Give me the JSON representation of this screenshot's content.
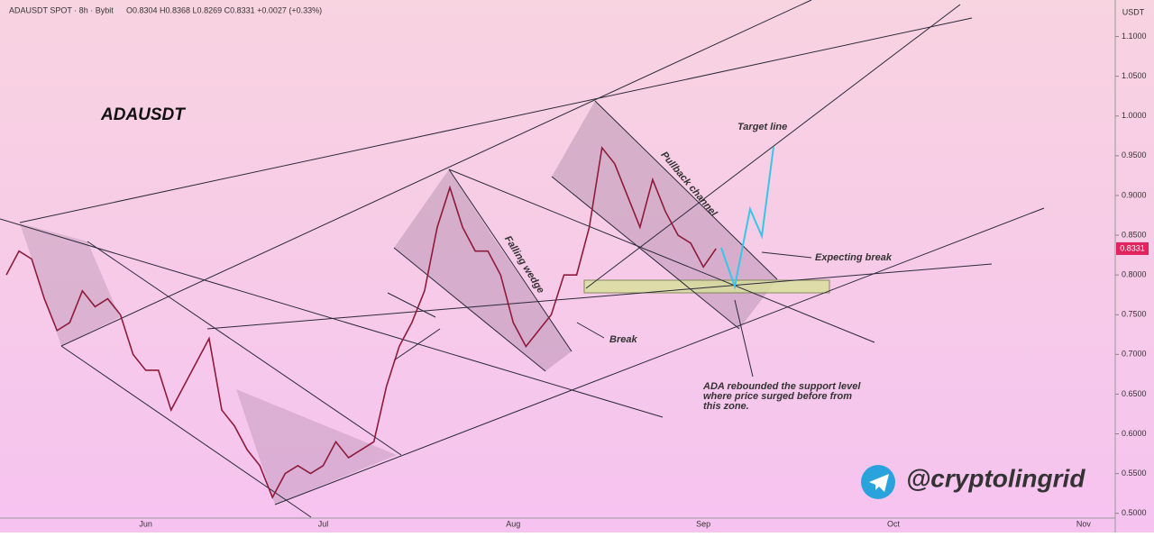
{
  "chart_data": {
    "type": "line",
    "symbol": "ADAUSDT SPOT · 8h · Bybit",
    "ohlc": "O0.8304 H0.8368 L0.8269 C0.8331 +0.0027 (+0.33%)",
    "currency": "USDT",
    "title": "ADAUSDT",
    "last_price": 0.8331,
    "last_price_label": "0.8331",
    "annotations": [
      "Target line",
      "Pullback channel",
      "Falling wedge",
      "Break",
      "Expecting break",
      "ADA rebounded the support level",
      "where price surged before from",
      "this zone."
    ],
    "watermark": "@cryptolingrid",
    "color": "#8e1b3a",
    "categories": [
      null,
      null,
      null,
      null,
      null,
      null,
      null,
      null,
      null,
      null,
      null,
      "Jun",
      null,
      null,
      null,
      null,
      null,
      null,
      null,
      null,
      null,
      null,
      null,
      null,
      null,
      "Jul",
      null,
      null,
      null,
      null,
      null,
      null,
      null,
      null,
      null,
      null,
      null,
      null,
      null,
      null,
      "Aug",
      null,
      null,
      null,
      null,
      null,
      null,
      null,
      null,
      null,
      null,
      null,
      null,
      null,
      null,
      "Sep",
      null,
      null,
      null,
      null,
      null,
      null,
      null,
      null,
      null,
      null,
      null,
      null,
      null,
      null,
      "Oct",
      null,
      null,
      null,
      null,
      null,
      null,
      null,
      null,
      null,
      null,
      null,
      null,
      null,
      null,
      "Nov",
      null,
      null
    ],
    "values": [
      0.8,
      0.83,
      0.82,
      0.77,
      0.73,
      0.74,
      0.78,
      0.76,
      0.77,
      0.75,
      0.7,
      0.68,
      0.68,
      0.63,
      0.66,
      0.69,
      0.72,
      0.63,
      0.61,
      0.58,
      0.56,
      0.52,
      0.55,
      0.56,
      0.55,
      0.56,
      0.59,
      0.57,
      0.58,
      0.59,
      0.66,
      0.71,
      0.74,
      0.78,
      0.86,
      0.91,
      0.86,
      0.83,
      0.83,
      0.8,
      0.74,
      0.71,
      0.73,
      0.75,
      0.8,
      0.8,
      0.86,
      0.96,
      0.94,
      0.9,
      0.86,
      0.92,
      0.88,
      0.85,
      0.84,
      0.81,
      0.8331,
      null,
      null,
      null,
      null,
      null,
      null,
      null,
      null,
      null,
      null,
      null,
      null,
      null,
      null,
      null,
      null,
      null,
      null,
      null,
      null,
      null,
      null,
      null,
      null,
      null,
      null,
      null,
      null,
      null,
      null,
      null
    ],
    "ylim": [
      0.494,
      1.146
    ],
    "yticks": [
      {
        "value": 0.5,
        "label": "0.5000"
      },
      {
        "value": 0.55,
        "label": "0.5500"
      },
      {
        "value": 0.6,
        "label": "0.6000"
      },
      {
        "value": 0.65,
        "label": "0.6500"
      },
      {
        "value": 0.7,
        "label": "0.7000"
      },
      {
        "value": 0.75,
        "label": "0.7500"
      },
      {
        "value": 0.8,
        "label": "0.8000"
      },
      {
        "value": 0.85,
        "label": "0.8500"
      },
      {
        "value": 0.9,
        "label": "0.9000"
      },
      {
        "value": 0.95,
        "label": "0.9500"
      },
      {
        "value": 1.0,
        "label": "1.0000"
      },
      {
        "value": 1.05,
        "label": "1.0500"
      },
      {
        "value": 1.1,
        "label": "1.1000"
      }
    ]
  }
}
